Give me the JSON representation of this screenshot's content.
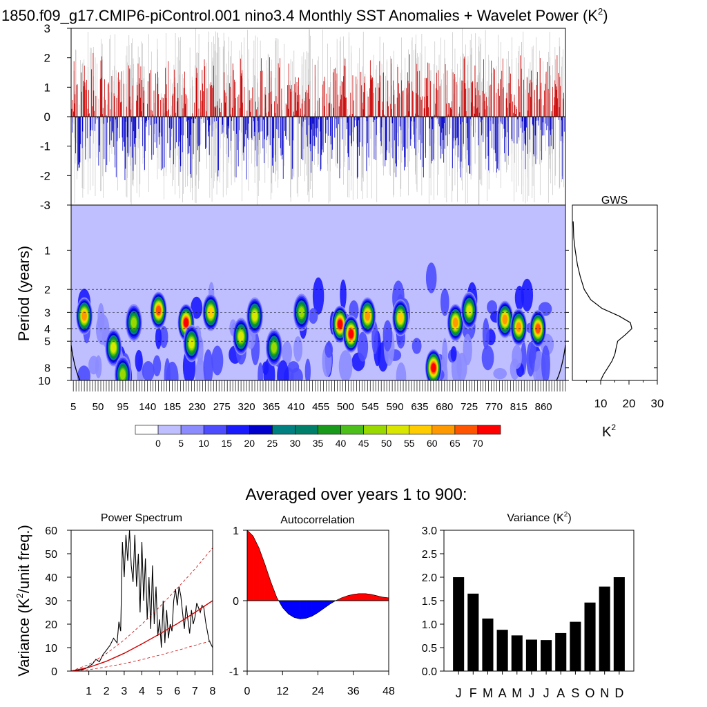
{
  "title_main": "1850.f09_g17.CMIP6-piControl.001 nino3.4 Monthly SST Anomalies + Wavelet Power (K",
  "title_sup": "2",
  "title_close": ")",
  "subtitle": "Averaged over years 1 to 900:",
  "chart_data": [
    {
      "id": "timeseries",
      "type": "bar",
      "description": "Monthly SST anomaly bars (red positive, blue negative)",
      "ylim": [
        -3,
        3
      ],
      "yticks": [
        -3,
        -2,
        -1,
        0,
        1,
        2,
        3
      ],
      "colors": {
        "positive": "#cc0000",
        "negative": "#0000cc",
        "background_lines": "#bbbbbb"
      }
    },
    {
      "id": "wavelet",
      "type": "heatmap",
      "ylabel": "Period (years)",
      "yticks": [
        1,
        2,
        3,
        4,
        5,
        8,
        10
      ],
      "dashed_periods": [
        2,
        3,
        4,
        5
      ],
      "xticks": [
        5,
        50,
        95,
        140,
        185,
        230,
        275,
        320,
        365,
        410,
        455,
        500,
        545,
        590,
        635,
        680,
        725,
        770,
        815,
        860
      ],
      "xlim": [
        1,
        900
      ],
      "hotspots": [
        {
          "t": 25,
          "p": 3.2,
          "v": 62
        },
        {
          "t": 78,
          "p": 5.6,
          "v": 52
        },
        {
          "t": 95,
          "p": 9.0,
          "v": 48
        },
        {
          "t": 115,
          "p": 3.6,
          "v": 48
        },
        {
          "t": 160,
          "p": 2.9,
          "v": 66
        },
        {
          "t": 210,
          "p": 3.6,
          "v": 72
        },
        {
          "t": 220,
          "p": 5.2,
          "v": 50
        },
        {
          "t": 255,
          "p": 3.0,
          "v": 58
        },
        {
          "t": 310,
          "p": 4.6,
          "v": 50
        },
        {
          "t": 335,
          "p": 3.2,
          "v": 50
        },
        {
          "t": 370,
          "p": 5.6,
          "v": 45
        },
        {
          "t": 420,
          "p": 3.0,
          "v": 46
        },
        {
          "t": 490,
          "p": 3.7,
          "v": 72
        },
        {
          "t": 510,
          "p": 4.4,
          "v": 72
        },
        {
          "t": 540,
          "p": 3.2,
          "v": 62
        },
        {
          "t": 600,
          "p": 3.3,
          "v": 55
        },
        {
          "t": 660,
          "p": 8.0,
          "v": 72
        },
        {
          "t": 700,
          "p": 3.6,
          "v": 62
        },
        {
          "t": 725,
          "p": 2.9,
          "v": 52
        },
        {
          "t": 790,
          "p": 3.4,
          "v": 62
        },
        {
          "t": 815,
          "p": 3.9,
          "v": 60
        },
        {
          "t": 850,
          "p": 4.0,
          "v": 68
        }
      ]
    },
    {
      "id": "colorbar",
      "type": "colorbar",
      "labels": [
        "0",
        "5",
        "10",
        "15",
        "20",
        "25",
        "30",
        "35",
        "40",
        "45",
        "50",
        "55",
        "60",
        "65",
        "70"
      ],
      "colors": [
        "#ffffff",
        "#bfbfff",
        "#8c8cff",
        "#4d4dff",
        "#1a1aff",
        "#0000cc",
        "#008080",
        "#00806b",
        "#1a9a1a",
        "#4dbf1a",
        "#99d900",
        "#d9e600",
        "#ffcc00",
        "#ff9900",
        "#ff5500",
        "#ff0000"
      ]
    },
    {
      "id": "gws",
      "type": "line",
      "title": "GWS",
      "xlabel": "K",
      "xlabel_sup": "2",
      "xticks": [
        10,
        20,
        30
      ],
      "xlim": [
        0,
        30
      ],
      "periods": [
        0.6,
        0.8,
        1.0,
        1.3,
        1.6,
        2.0,
        2.4,
        2.8,
        3.2,
        3.6,
        4.0,
        4.4,
        5.0,
        5.6,
        6.3,
        7.1,
        8.0,
        9.0,
        10.0
      ],
      "power": [
        0.3,
        0.5,
        1.0,
        1.8,
        2.8,
        4.2,
        6.5,
        10.5,
        16.5,
        20.5,
        21.0,
        19.0,
        16.0,
        15.5,
        15.0,
        14.0,
        12.5,
        11.0,
        10.0
      ]
    },
    {
      "id": "spectrum",
      "type": "line",
      "title": "Power Spectrum",
      "ylabel": "Variance (K",
      "ylabel_sup": "2",
      "ylabel_tail": "/unit freq.)",
      "xlim": [
        0,
        8
      ],
      "ylim": [
        0,
        60
      ],
      "xticks": [
        1,
        2,
        3,
        4,
        5,
        6,
        7,
        8
      ],
      "yticks": [
        0,
        10,
        20,
        30,
        40,
        50,
        60
      ],
      "series": [
        {
          "style": "black-solid",
          "x": [
            0,
            0.4,
            0.8,
            1.0,
            1.2,
            1.4,
            1.6,
            1.8,
            2.0,
            2.2,
            2.4,
            2.6,
            2.7,
            2.8,
            2.9,
            3.0,
            3.1,
            3.2,
            3.3,
            3.4,
            3.5,
            3.6,
            3.7,
            3.8,
            3.9,
            4.0,
            4.1,
            4.2,
            4.3,
            4.4,
            4.5,
            4.6,
            4.7,
            4.8,
            4.9,
            5.0,
            5.1,
            5.2,
            5.3,
            5.4,
            5.5,
            5.6,
            5.7,
            5.8,
            5.9,
            6.0,
            6.1,
            6.2,
            6.3,
            6.4,
            6.5,
            6.6,
            6.7,
            6.8,
            6.9,
            7.0,
            7.1,
            7.2,
            7.3,
            7.4,
            7.5,
            7.6,
            7.7,
            7.8,
            8.0
          ],
          "y": [
            0,
            0.3,
            1.0,
            2.0,
            3.0,
            5.0,
            4.0,
            7.0,
            9.0,
            11.0,
            14.0,
            12.0,
            21.0,
            17.0,
            55.0,
            40.0,
            58.0,
            47.0,
            60.0,
            45.0,
            38.0,
            58.0,
            36.0,
            50.0,
            25.0,
            55.0,
            30.0,
            48.0,
            22.0,
            40.0,
            18.0,
            45.0,
            20.0,
            36.0,
            15.0,
            22.0,
            10.0,
            30.0,
            12.0,
            26.0,
            14.0,
            20.0,
            17.0,
            30.0,
            35.0,
            28.0,
            36.0,
            32.0,
            25.0,
            18.0,
            28.0,
            22.0,
            16.0,
            26.0,
            20.0,
            23.0,
            29.0,
            27.0,
            25.0,
            28.0,
            27.0,
            21.0,
            17.0,
            13.0,
            10.0
          ]
        },
        {
          "style": "red-solid",
          "x": [
            0,
            1,
            2,
            3,
            4,
            5,
            6,
            7,
            8
          ],
          "y": [
            0,
            1.6,
            4.2,
            7.6,
            11.6,
            15.8,
            20.2,
            25.0,
            30.0
          ]
        },
        {
          "style": "red-dashed",
          "x": [
            0,
            1,
            2,
            3,
            4,
            5,
            6,
            7,
            8
          ],
          "y": [
            0,
            2.8,
            7.5,
            13.3,
            20.0,
            27.3,
            35.3,
            43.5,
            52.5
          ]
        },
        {
          "style": "red-dashed",
          "x": [
            0,
            1,
            2,
            3,
            4,
            5,
            6,
            7,
            8
          ],
          "y": [
            0,
            0.6,
            1.8,
            3.2,
            4.9,
            6.8,
            8.8,
            11.0,
            13.0
          ]
        }
      ]
    },
    {
      "id": "autocorrelation",
      "type": "area",
      "title": "Autocorrelation",
      "xlim": [
        0,
        48
      ],
      "ylim": [
        -1,
        1
      ],
      "xticks": [
        0,
        12,
        24,
        36,
        48
      ],
      "yticks": [
        -1,
        0,
        1
      ],
      "lags": [
        0,
        2,
        4,
        6,
        8,
        10,
        12,
        14,
        16,
        18,
        20,
        22,
        24,
        26,
        28,
        30,
        32,
        34,
        36,
        38,
        40,
        42,
        44,
        46,
        48
      ],
      "values": [
        1.0,
        0.92,
        0.75,
        0.52,
        0.27,
        0.05,
        -0.1,
        -0.19,
        -0.24,
        -0.26,
        -0.25,
        -0.22,
        -0.17,
        -0.11,
        -0.05,
        0.0,
        0.04,
        0.07,
        0.09,
        0.1,
        0.1,
        0.09,
        0.07,
        0.05,
        0.04
      ],
      "colors": {
        "positive": "#ff0000",
        "negative": "#0000ff"
      }
    },
    {
      "id": "variance",
      "type": "bar",
      "title": "Variance (K",
      "title_sup": "2",
      "title_close": ")",
      "categories": [
        "J",
        "F",
        "M",
        "A",
        "M",
        "J",
        "J",
        "A",
        "S",
        "O",
        "N",
        "D"
      ],
      "values": [
        2.0,
        1.65,
        1.12,
        0.88,
        0.76,
        0.67,
        0.66,
        0.81,
        1.05,
        1.46,
        1.8,
        2.0
      ],
      "ylim": [
        0,
        3.0
      ],
      "yticks": [
        "0.0",
        "0.5",
        "1.0",
        "1.5",
        "2.0",
        "2.5",
        "3.0"
      ]
    }
  ]
}
